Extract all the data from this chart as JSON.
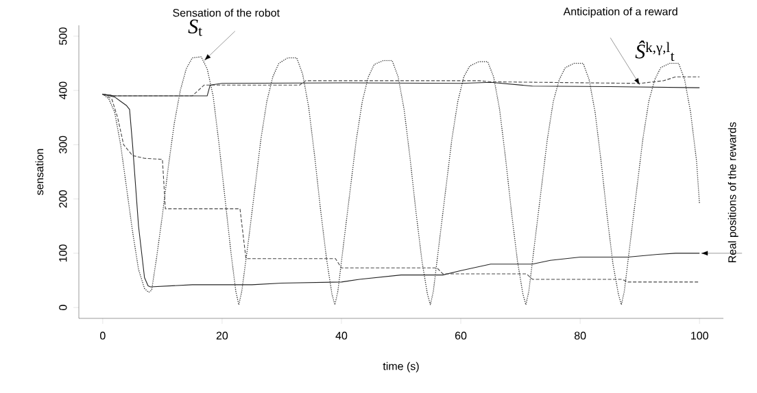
{
  "chart_data": {
    "type": "line",
    "xlabel": "time (s)",
    "ylabel": "sensation",
    "xlim": [
      -4,
      104
    ],
    "ylim": [
      -20,
      520
    ],
    "xticks": [
      0,
      20,
      40,
      60,
      80,
      100
    ],
    "yticks": [
      0,
      100,
      200,
      300,
      400,
      500
    ],
    "marker": "none",
    "series": [
      {
        "color": "#333333",
        "line_style": "dotted",
        "x": [
          0,
          1,
          2,
          3,
          4,
          5,
          6,
          7,
          7.7,
          8.2,
          9,
          10,
          11,
          12,
          13,
          14,
          15,
          16.5,
          17.5,
          18.5,
          19.5,
          20.5,
          21.5,
          22.3,
          22.8,
          23.3,
          24.5,
          25.5,
          26.5,
          27.5,
          28.5,
          29.5,
          31,
          32.5,
          33.5,
          34.5,
          35.5,
          36.5,
          37.5,
          38.4,
          38.9,
          39.4,
          40.5,
          41.5,
          42.5,
          43.5,
          44.5,
          45.5,
          47,
          48.5,
          49.5,
          50.5,
          51.5,
          52.5,
          53.5,
          54.4,
          54.9,
          55.4,
          56.5,
          57.5,
          58.5,
          59.5,
          60.5,
          61.5,
          63,
          64.5,
          65.5,
          66.5,
          67.5,
          68.5,
          69.5,
          70.4,
          70.9,
          71.4,
          72.5,
          73.5,
          74.5,
          75.5,
          76.5,
          77.5,
          79,
          80.5,
          81.5,
          82.5,
          83.5,
          84.5,
          85.5,
          86.4,
          86.9,
          87.4,
          88.5,
          89.5,
          90.5,
          91.5,
          92.5,
          93.5,
          95,
          96.5,
          97.5,
          98.5,
          99.5,
          100
        ],
        "values": [
          393,
          385,
          360,
          300,
          220,
          140,
          70,
          35,
          28,
          32,
          90,
          170,
          260,
          340,
          400,
          440,
          460,
          462,
          440,
          390,
          300,
          200,
          100,
          30,
          5,
          30,
          130,
          220,
          310,
          380,
          425,
          450,
          460,
          460,
          430,
          370,
          280,
          180,
          90,
          25,
          5,
          30,
          130,
          220,
          310,
          380,
          425,
          448,
          455,
          455,
          425,
          365,
          275,
          175,
          85,
          25,
          5,
          30,
          130,
          220,
          310,
          380,
          425,
          445,
          453,
          453,
          425,
          365,
          275,
          175,
          85,
          25,
          5,
          30,
          130,
          220,
          310,
          380,
          420,
          442,
          450,
          450,
          420,
          360,
          270,
          170,
          80,
          25,
          5,
          30,
          130,
          220,
          310,
          380,
          420,
          442,
          450,
          450,
          420,
          360,
          270,
          190
        ]
      },
      {
        "color": "#222222",
        "line_style": "solid",
        "x": [
          0,
          2,
          10,
          17.5,
          18,
          20,
          40,
          60,
          65,
          72,
          85,
          100
        ],
        "values": [
          393,
          390,
          390,
          390,
          410,
          413,
          414,
          413,
          415,
          408,
          407,
          405
        ]
      },
      {
        "color": "#222222",
        "line_style": "solid",
        "x": [
          0,
          2,
          3,
          4,
          4.5,
          5,
          6,
          7,
          7.6,
          8,
          15,
          25,
          30,
          40,
          43,
          50,
          57,
          60,
          65,
          72,
          75,
          80,
          88,
          93,
          96,
          100
        ],
        "values": [
          393,
          388,
          380,
          372,
          365,
          300,
          150,
          55,
          40,
          38,
          42,
          42,
          45,
          47,
          52,
          60,
          60,
          68,
          80,
          80,
          87,
          93,
          93,
          98,
          100,
          100
        ]
      },
      {
        "color": "#444444",
        "line_style": "dashed",
        "x": [
          0,
          1,
          2,
          15,
          16,
          17,
          33,
          34,
          63,
          65,
          90,
          94,
          96,
          100
        ],
        "values": [
          393,
          392,
          390,
          390,
          400,
          410,
          410,
          418,
          418,
          416,
          413,
          418,
          425,
          425
        ]
      },
      {
        "color": "#444444",
        "line_style": "dashed",
        "x": [
          0,
          1.5,
          2.5,
          3.5,
          5,
          7,
          10,
          10.5,
          23,
          24,
          39,
          40,
          56,
          57,
          71,
          72,
          87,
          88,
          100
        ],
        "values": [
          393,
          385,
          350,
          300,
          280,
          275,
          273,
          182,
          182,
          90,
          90,
          73,
          73,
          62,
          62,
          52,
          52,
          47,
          47
        ]
      }
    ],
    "annotations": [
      "Sensation of the robot",
      {
        "text": "*S*$_{t}$",
        "x": 17,
        "y": 455
      },
      "Anticipation of a reward",
      {
        "text": "*Ŝ*$^{k,γ,l}$$_{t}$",
        "x": 90,
        "y": 410
      },
      {
        "text": "Real positions of the rewards",
        "x": 100,
        "y": 100
      }
    ]
  }
}
